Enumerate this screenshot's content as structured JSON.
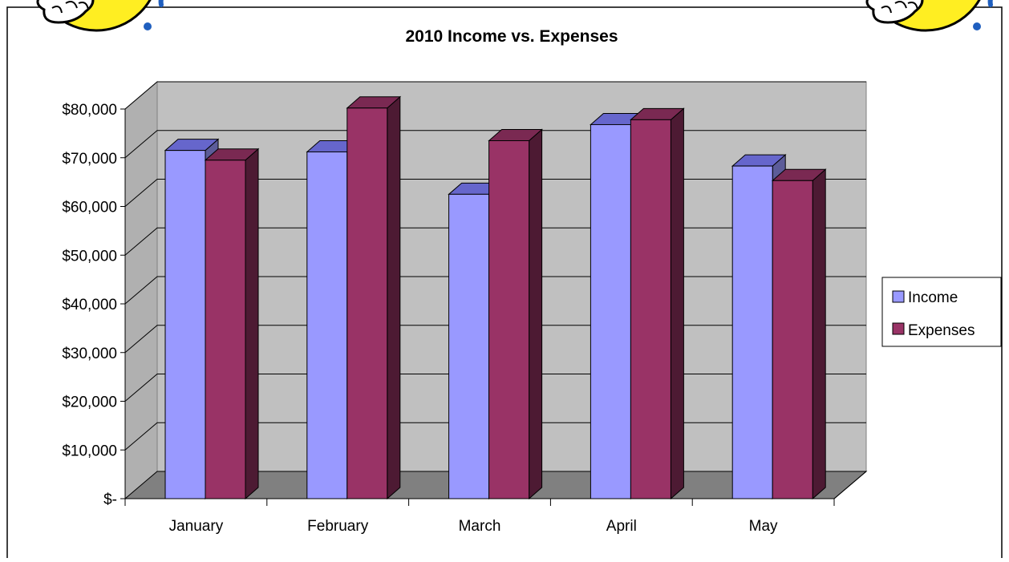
{
  "chart_data": {
    "type": "bar",
    "title": "2010 Income vs. Expenses",
    "categories": [
      "January",
      "February",
      "March",
      "April",
      "May"
    ],
    "series": [
      {
        "name": "Income",
        "values": [
          71500,
          71200,
          62500,
          76800,
          68300
        ],
        "color": "#9999ff",
        "top_color": "#6666cc",
        "side_color": "#5c5c99"
      },
      {
        "name": "Expenses",
        "values": [
          69500,
          80200,
          73500,
          77800,
          65300
        ],
        "color": "#993366",
        "top_color": "#7a2952",
        "side_color": "#4d1a33"
      }
    ],
    "y_ticks": [
      "$-",
      "$10,000",
      "$20,000",
      "$30,000",
      "$40,000",
      "$50,000",
      "$60,000",
      "$70,000",
      "$80,000"
    ],
    "ylim": [
      0,
      80000
    ],
    "grid": true,
    "legend_position": "right",
    "colors": {
      "wall": "#c0c0c0",
      "floor": "#808080",
      "border": "#000000"
    }
  },
  "decorations": {
    "mascots": [
      "smiley-mascot-icon",
      "smiley-mascot-icon"
    ]
  }
}
